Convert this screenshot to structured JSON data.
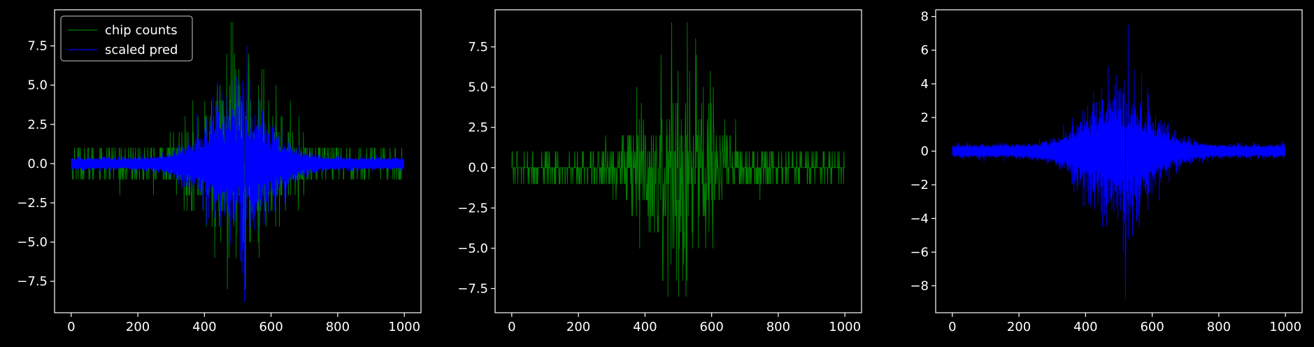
{
  "chart_data": [
    {
      "type": "line",
      "title": "",
      "xlabel": "",
      "ylabel": "",
      "xlim": [
        -50,
        1050
      ],
      "ylim": [
        -9.5,
        9.8
      ],
      "xticks": [
        0,
        200,
        400,
        600,
        800,
        1000
      ],
      "yticks": [
        -7.5,
        -5.0,
        -2.5,
        0.0,
        2.5,
        5.0,
        7.5
      ],
      "ytick_labels": [
        "−7.5",
        "−5.0",
        "−2.5",
        "0.0",
        "2.5",
        "5.0",
        "7.5"
      ],
      "grid": false,
      "legend": {
        "position": "top-left",
        "entries": [
          "chip counts",
          "scaled pred"
        ]
      },
      "series": [
        {
          "name": "chip counts",
          "color": "#008000",
          "kind": "counts",
          "n": 1000,
          "peak_x": 500,
          "min": -8,
          "max": 9
        },
        {
          "name": "scaled pred",
          "color": "#0000ff",
          "kind": "pred",
          "n": 1000,
          "peak_x": 500,
          "min": -8.8,
          "max": 7.5
        }
      ]
    },
    {
      "type": "line",
      "title": "",
      "xlabel": "",
      "ylabel": "",
      "xlim": [
        -50,
        1050
      ],
      "ylim": [
        -9.0,
        9.8
      ],
      "xticks": [
        0,
        200,
        400,
        600,
        800,
        1000
      ],
      "yticks": [
        -7.5,
        -5.0,
        -2.5,
        0.0,
        2.5,
        5.0,
        7.5
      ],
      "ytick_labels": [
        "−7.5",
        "−5.0",
        "−2.5",
        "0.0",
        "2.5",
        "5.0",
        "7.5"
      ],
      "grid": false,
      "series": [
        {
          "color": "#008000",
          "kind": "counts",
          "n": 1000,
          "peak_x": 500,
          "min": -8,
          "max": 9
        }
      ]
    },
    {
      "type": "line",
      "title": "",
      "xlabel": "",
      "ylabel": "",
      "xlim": [
        -50,
        1050
      ],
      "ylim": [
        -9.6,
        8.4
      ],
      "xticks": [
        0,
        200,
        400,
        600,
        800,
        1000
      ],
      "yticks": [
        -8,
        -6,
        -4,
        -2,
        0,
        2,
        4,
        6,
        8
      ],
      "ytick_labels": [
        "−8",
        "−6",
        "−4",
        "−2",
        "0",
        "2",
        "4",
        "6",
        "8"
      ],
      "grid": false,
      "series": [
        {
          "color": "#0000ff",
          "kind": "pred",
          "n": 1000,
          "peak_x": 500,
          "min": -8.8,
          "max": 7.5
        }
      ]
    }
  ]
}
